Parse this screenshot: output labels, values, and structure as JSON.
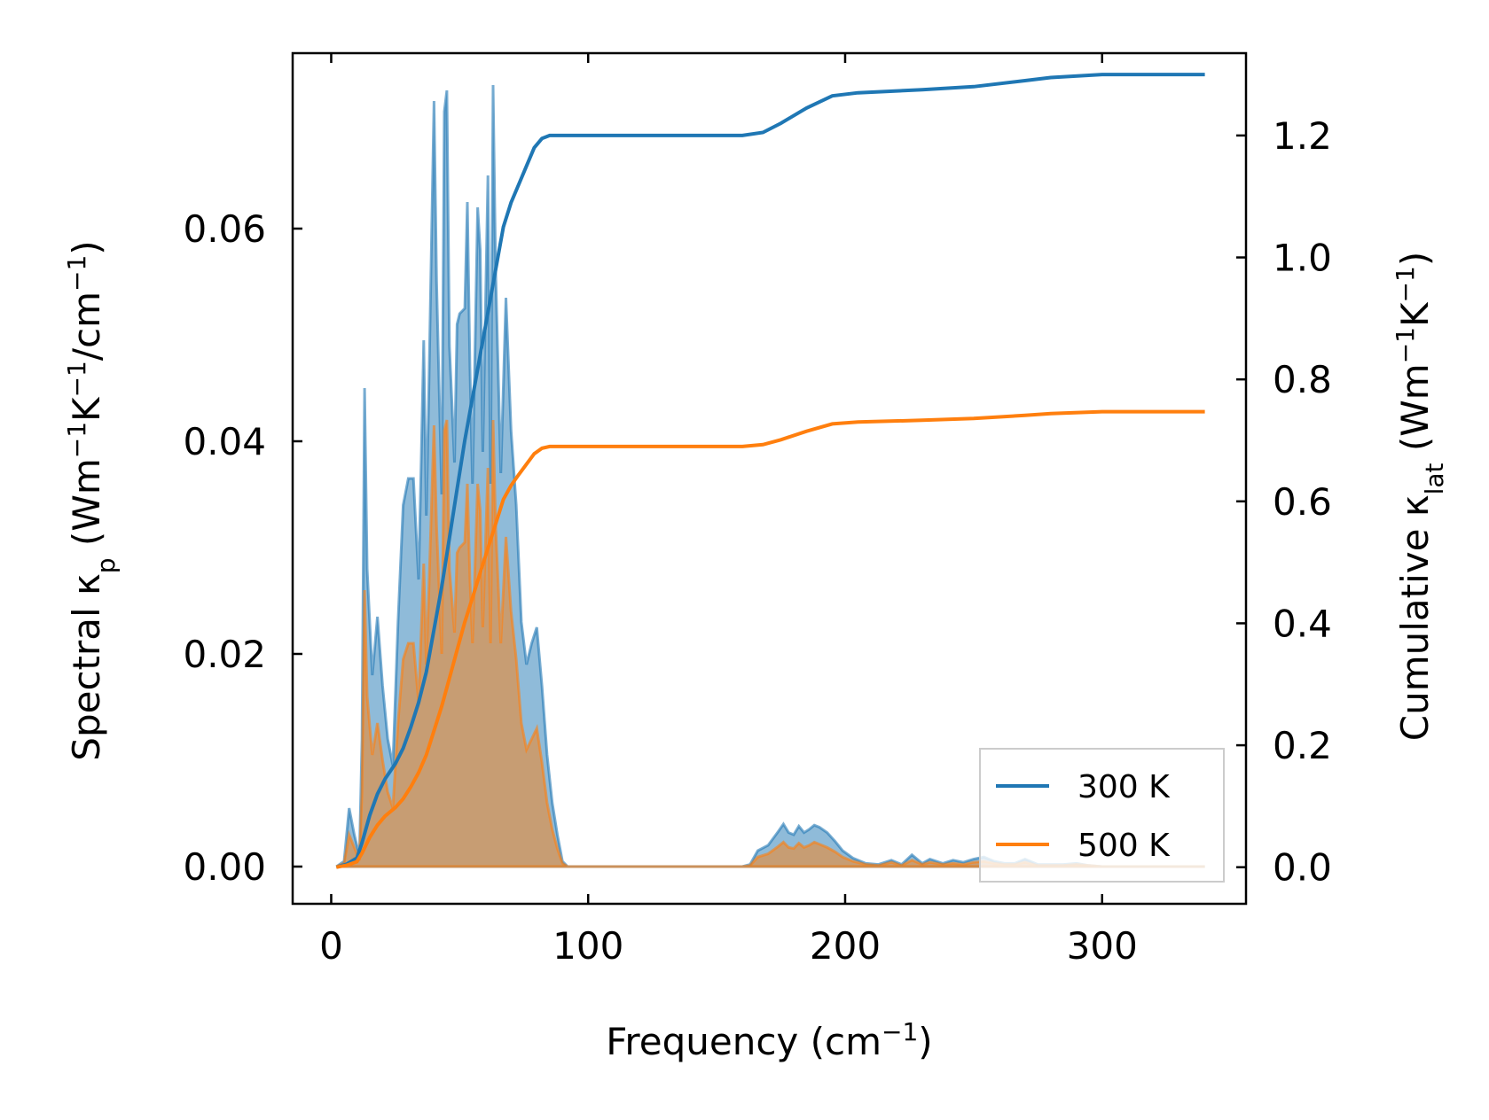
{
  "chart_data": {
    "type": "area",
    "xlabel": "Frequency (cm<sup>−1</sup>)",
    "xlabel_parts": [
      "Frequency (cm",
      "−1",
      ")"
    ],
    "ylabel_left_parts": [
      "Spectral κ",
      "p",
      " (Wm",
      "−1",
      "K",
      "−1",
      "/cm",
      "−1",
      ")"
    ],
    "ylabel_right_parts": [
      "Cumulative κ",
      "lat",
      " (Wm",
      "−1",
      "K",
      "−1",
      ")"
    ],
    "xlim": [
      -15,
      356
    ],
    "ylim_left": [
      -0.0035,
      0.0765
    ],
    "ylim_right": [
      -0.06,
      1.335
    ],
    "x_ticks": [
      0,
      100,
      200,
      300
    ],
    "x_tick_labels": [
      "0",
      "100",
      "200",
      "300"
    ],
    "y_left_ticks": [
      0.0,
      0.02,
      0.04,
      0.06
    ],
    "y_left_tick_labels": [
      "0.00",
      "0.02",
      "0.04",
      "0.06"
    ],
    "y_right_ticks": [
      0.0,
      0.2,
      0.4,
      0.6,
      0.8,
      1.0,
      1.2
    ],
    "y_right_tick_labels": [
      "0.0",
      "0.2",
      "0.4",
      "0.6",
      "0.8",
      "1.0",
      "1.2"
    ],
    "legend_position": "lower-right",
    "grid": false,
    "series": [
      {
        "name": "300 K",
        "color": "#1f77b4",
        "spectral": [
          [
            2,
            0
          ],
          [
            5,
            0.0005
          ],
          [
            7,
            0.0055
          ],
          [
            9,
            0.003
          ],
          [
            11,
            0.001
          ],
          [
            12,
            0.012
          ],
          [
            13,
            0.045
          ],
          [
            14,
            0.028
          ],
          [
            16,
            0.018
          ],
          [
            18,
            0.0235
          ],
          [
            20,
            0.017
          ],
          [
            22,
            0.012
          ],
          [
            24,
            0.0095
          ],
          [
            26,
            0.023
          ],
          [
            28,
            0.034
          ],
          [
            30,
            0.0365
          ],
          [
            32,
            0.0365
          ],
          [
            34,
            0.027
          ],
          [
            35,
            0.038
          ],
          [
            36,
            0.0495
          ],
          [
            37,
            0.033
          ],
          [
            38,
            0.045
          ],
          [
            40,
            0.072
          ],
          [
            41,
            0.055
          ],
          [
            43,
            0.035
          ],
          [
            44,
            0.071
          ],
          [
            45,
            0.073
          ],
          [
            46,
            0.049
          ],
          [
            48,
            0.038
          ],
          [
            49,
            0.051
          ],
          [
            50,
            0.052
          ],
          [
            52,
            0.0525
          ],
          [
            53,
            0.0625
          ],
          [
            54,
            0.047
          ],
          [
            55,
            0.036
          ],
          [
            57,
            0.062
          ],
          [
            58,
            0.058
          ],
          [
            59,
            0.039
          ],
          [
            61,
            0.065
          ],
          [
            62,
            0.036
          ],
          [
            63,
            0.0735
          ],
          [
            64,
            0.056
          ],
          [
            66,
            0.037
          ],
          [
            68,
            0.0535
          ],
          [
            70,
            0.041
          ],
          [
            72,
            0.034
          ],
          [
            74,
            0.023
          ],
          [
            76,
            0.019
          ],
          [
            78,
            0.021
          ],
          [
            80,
            0.0225
          ],
          [
            82,
            0.017
          ],
          [
            84,
            0.0105
          ],
          [
            86,
            0.006
          ],
          [
            88,
            0.003
          ],
          [
            90,
            0.0005
          ],
          [
            92,
            0
          ],
          [
            100,
            0
          ],
          [
            140,
            0
          ],
          [
            160,
            0
          ],
          [
            163,
            0.0002
          ],
          [
            166,
            0.0015
          ],
          [
            170,
            0.002
          ],
          [
            174,
            0.0033
          ],
          [
            176,
            0.004
          ],
          [
            178,
            0.0032
          ],
          [
            180,
            0.003
          ],
          [
            182,
            0.0038
          ],
          [
            184,
            0.0032
          ],
          [
            186,
            0.0035
          ],
          [
            188,
            0.0039
          ],
          [
            190,
            0.0037
          ],
          [
            193,
            0.0032
          ],
          [
            196,
            0.0024
          ],
          [
            199,
            0.0015
          ],
          [
            203,
            0.0008
          ],
          [
            208,
            0.0003
          ],
          [
            213,
            0.0002
          ],
          [
            218,
            0.0006
          ],
          [
            222,
            0.0002
          ],
          [
            226,
            0.0011
          ],
          [
            230,
            0.0003
          ],
          [
            233,
            0.0007
          ],
          [
            238,
            0.0003
          ],
          [
            242,
            0.0006
          ],
          [
            246,
            0.0004
          ],
          [
            250,
            0.0007
          ],
          [
            254,
            0.0009
          ],
          [
            258,
            0.0005
          ],
          [
            262,
            0.0003
          ],
          [
            266,
            0.0003
          ],
          [
            270,
            0.0007
          ],
          [
            275,
            0.0002
          ],
          [
            280,
            0.0002
          ],
          [
            285,
            0.0002
          ],
          [
            290,
            0.0003
          ],
          [
            295,
            0.0001
          ],
          [
            300,
            0
          ],
          [
            340,
            0
          ]
        ],
        "cumulative": [
          [
            2,
            0
          ],
          [
            6,
            0.005
          ],
          [
            10,
            0.015
          ],
          [
            12,
            0.04
          ],
          [
            15,
            0.085
          ],
          [
            18,
            0.12
          ],
          [
            21,
            0.145
          ],
          [
            25,
            0.17
          ],
          [
            28,
            0.195
          ],
          [
            31,
            0.23
          ],
          [
            34,
            0.27
          ],
          [
            37,
            0.32
          ],
          [
            40,
            0.39
          ],
          [
            43,
            0.46
          ],
          [
            46,
            0.54
          ],
          [
            49,
            0.62
          ],
          [
            52,
            0.7
          ],
          [
            55,
            0.77
          ],
          [
            58,
            0.84
          ],
          [
            61,
            0.91
          ],
          [
            64,
            0.98
          ],
          [
            67,
            1.05
          ],
          [
            70,
            1.09
          ],
          [
            73,
            1.12
          ],
          [
            76,
            1.15
          ],
          [
            79,
            1.18
          ],
          [
            82,
            1.195
          ],
          [
            85,
            1.2
          ],
          [
            88,
            1.2
          ],
          [
            160,
            1.2
          ],
          [
            168,
            1.205
          ],
          [
            175,
            1.22
          ],
          [
            185,
            1.245
          ],
          [
            195,
            1.265
          ],
          [
            205,
            1.27
          ],
          [
            230,
            1.275
          ],
          [
            250,
            1.28
          ],
          [
            270,
            1.29
          ],
          [
            280,
            1.295
          ],
          [
            300,
            1.3
          ],
          [
            340,
            1.3
          ]
        ]
      },
      {
        "name": "500 K",
        "color": "#ff7f0e",
        "spectral": [
          [
            2,
            0
          ],
          [
            5,
            0.0003
          ],
          [
            7,
            0.003
          ],
          [
            9,
            0.0018
          ],
          [
            11,
            0.0006
          ],
          [
            12,
            0.007
          ],
          [
            13,
            0.026
          ],
          [
            14,
            0.016
          ],
          [
            16,
            0.0105
          ],
          [
            18,
            0.0135
          ],
          [
            20,
            0.01
          ],
          [
            22,
            0.007
          ],
          [
            24,
            0.0055
          ],
          [
            26,
            0.0135
          ],
          [
            28,
            0.0195
          ],
          [
            30,
            0.021
          ],
          [
            32,
            0.021
          ],
          [
            34,
            0.0155
          ],
          [
            35,
            0.022
          ],
          [
            36,
            0.0285
          ],
          [
            37,
            0.019
          ],
          [
            38,
            0.026
          ],
          [
            40,
            0.0415
          ],
          [
            41,
            0.032
          ],
          [
            43,
            0.02
          ],
          [
            44,
            0.041
          ],
          [
            45,
            0.042
          ],
          [
            46,
            0.028
          ],
          [
            48,
            0.022
          ],
          [
            49,
            0.0295
          ],
          [
            50,
            0.03
          ],
          [
            52,
            0.0305
          ],
          [
            53,
            0.036
          ],
          [
            54,
            0.027
          ],
          [
            55,
            0.021
          ],
          [
            57,
            0.036
          ],
          [
            58,
            0.0335
          ],
          [
            59,
            0.0225
          ],
          [
            61,
            0.0375
          ],
          [
            62,
            0.021
          ],
          [
            63,
            0.042
          ],
          [
            64,
            0.032
          ],
          [
            66,
            0.021
          ],
          [
            68,
            0.031
          ],
          [
            70,
            0.024
          ],
          [
            72,
            0.0195
          ],
          [
            74,
            0.0135
          ],
          [
            76,
            0.011
          ],
          [
            78,
            0.012
          ],
          [
            80,
            0.013
          ],
          [
            82,
            0.0098
          ],
          [
            84,
            0.006
          ],
          [
            86,
            0.0035
          ],
          [
            88,
            0.0017
          ],
          [
            90,
            0.0003
          ],
          [
            92,
            0
          ],
          [
            100,
            0
          ],
          [
            140,
            0
          ],
          [
            160,
            0
          ],
          [
            163,
            0.0001
          ],
          [
            166,
            0.0009
          ],
          [
            170,
            0.0012
          ],
          [
            174,
            0.0019
          ],
          [
            176,
            0.0023
          ],
          [
            178,
            0.0018
          ],
          [
            180,
            0.0017
          ],
          [
            182,
            0.0022
          ],
          [
            184,
            0.0018
          ],
          [
            186,
            0.002
          ],
          [
            188,
            0.0023
          ],
          [
            190,
            0.0021
          ],
          [
            193,
            0.0018
          ],
          [
            196,
            0.0014
          ],
          [
            199,
            0.0009
          ],
          [
            203,
            0.0005
          ],
          [
            208,
            0.0002
          ],
          [
            213,
            0.0001
          ],
          [
            218,
            0.0004
          ],
          [
            222,
            0.0001
          ],
          [
            226,
            0.0006
          ],
          [
            230,
            0.0002
          ],
          [
            233,
            0.0004
          ],
          [
            238,
            0.0002
          ],
          [
            242,
            0.0003
          ],
          [
            246,
            0.0002
          ],
          [
            250,
            0.0004
          ],
          [
            254,
            0.0005
          ],
          [
            258,
            0.0003
          ],
          [
            262,
            0.0002
          ],
          [
            266,
            0.0002
          ],
          [
            270,
            0.0004
          ],
          [
            275,
            0.0001
          ],
          [
            280,
            0.0001
          ],
          [
            285,
            0.0001
          ],
          [
            290,
            0.0002
          ],
          [
            295,
            0.0001
          ],
          [
            300,
            0
          ],
          [
            340,
            0
          ]
        ],
        "cumulative": [
          [
            2,
            0
          ],
          [
            6,
            0.003
          ],
          [
            10,
            0.009
          ],
          [
            12,
            0.023
          ],
          [
            15,
            0.049
          ],
          [
            18,
            0.069
          ],
          [
            21,
            0.084
          ],
          [
            25,
            0.098
          ],
          [
            28,
            0.112
          ],
          [
            31,
            0.132
          ],
          [
            34,
            0.155
          ],
          [
            37,
            0.184
          ],
          [
            40,
            0.224
          ],
          [
            43,
            0.264
          ],
          [
            46,
            0.31
          ],
          [
            49,
            0.356
          ],
          [
            52,
            0.402
          ],
          [
            55,
            0.442
          ],
          [
            58,
            0.483
          ],
          [
            61,
            0.523
          ],
          [
            64,
            0.563
          ],
          [
            67,
            0.603
          ],
          [
            70,
            0.626
          ],
          [
            73,
            0.644
          ],
          [
            76,
            0.661
          ],
          [
            79,
            0.678
          ],
          [
            82,
            0.687
          ],
          [
            85,
            0.69
          ],
          [
            88,
            0.69
          ],
          [
            160,
            0.69
          ],
          [
            168,
            0.693
          ],
          [
            175,
            0.701
          ],
          [
            185,
            0.715
          ],
          [
            195,
            0.727
          ],
          [
            205,
            0.73
          ],
          [
            230,
            0.733
          ],
          [
            250,
            0.736
          ],
          [
            270,
            0.741
          ],
          [
            280,
            0.744
          ],
          [
            300,
            0.747
          ],
          [
            340,
            0.747
          ]
        ]
      }
    ]
  }
}
